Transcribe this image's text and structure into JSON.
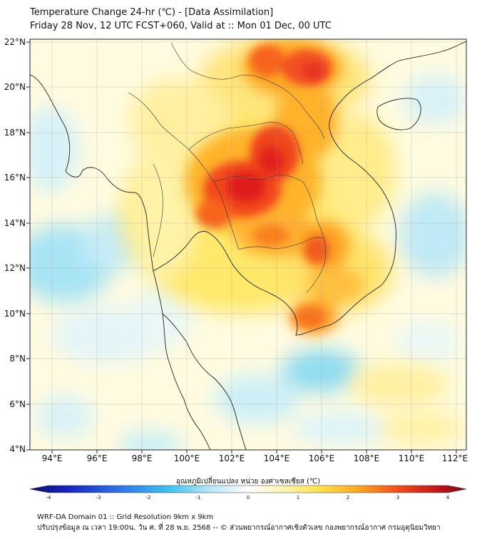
{
  "header": {
    "title": "Temperature Change 24-hr (℃) - [Data Assimilation]",
    "subtitle": "Friday 28 Nov, 12 UTC FCST+060, Valid at :: Mon 01 Dec, 00 UTC"
  },
  "map": {
    "lon_labels": [
      "94°E",
      "96°E",
      "98°E",
      "100°E",
      "102°E",
      "104°E",
      "106°E",
      "108°E",
      "110°E",
      "112°E"
    ],
    "lat_labels": [
      "22°N",
      "20°N",
      "18°N",
      "16°N",
      "14°N",
      "12°N",
      "10°N",
      "8°N",
      "6°N",
      "4°N"
    ],
    "lon_range": [
      93,
      112.5
    ],
    "lat_range": [
      4,
      22.2
    ]
  },
  "colorbar": {
    "label": "อุณหภูมิเปลี่ยนแปลง หน่วย องศาเซลเซียส (℃)",
    "ticks": [
      "-4",
      "-3",
      "-2",
      "-1",
      "0",
      "1",
      "2",
      "3",
      "4"
    ],
    "min": -4,
    "max": 4
  },
  "footer": {
    "line1": "WRF-DA Domain 01 :: Grid Resolution 9km x 9km",
    "line2": "ปรับปรุงข้อมูล ณ เวลา 19:00น. วัน ศ. ที่ 28 พ.ย. 2568 -- © ส่วนพยากรณ์อากาศเชิงตัวเลข กองพยากรณ์อากาศ กรมอุตุนิยมวิทยา"
  }
}
